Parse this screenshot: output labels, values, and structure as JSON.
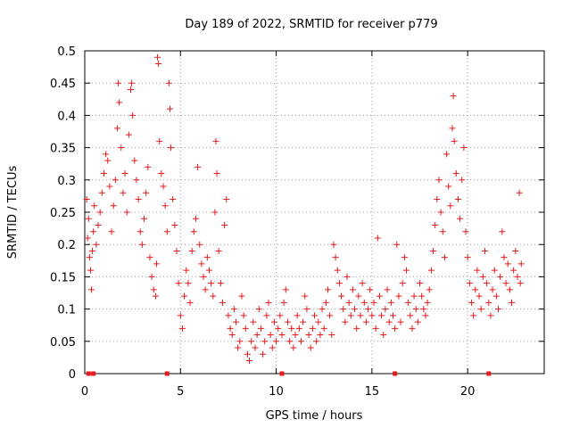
{
  "chart_data": {
    "type": "scatter",
    "title": "Day 189 of 2022, SRMTID for receiver p779",
    "xlabel": "GPS time / hours",
    "ylabel": "SRMTID / TECUs",
    "xlim": [
      0,
      24
    ],
    "ylim": [
      0,
      0.5
    ],
    "xticks": [
      0,
      5,
      10,
      15,
      20
    ],
    "xtick_labels": [
      "0",
      "5",
      "10",
      "15",
      "20"
    ],
    "yticks": [
      0,
      0.05,
      0.1,
      0.15,
      0.2,
      0.25,
      0.3,
      0.35,
      0.4,
      0.45,
      0.5
    ],
    "ytick_labels": [
      "0",
      "0.05",
      "0.1",
      "0.15",
      "0.2",
      "0.25",
      "0.3",
      "0.35",
      "0.4",
      "0.45",
      "0.5"
    ],
    "grid": true,
    "marker": "plus",
    "series_color": "#e41a1c",
    "series": [
      {
        "name": "SRMTID",
        "points": [
          [
            0.1,
            0.27
          ],
          [
            0.15,
            0.21
          ],
          [
            0.2,
            0.24
          ],
          [
            0.25,
            0.18
          ],
          [
            0.3,
            0.16
          ],
          [
            0.35,
            0.13
          ],
          [
            0.4,
            0.19
          ],
          [
            0.45,
            0.22
          ],
          [
            0.5,
            0.26
          ],
          [
            0.6,
            0.2
          ],
          [
            0.7,
            0.23
          ],
          [
            0.8,
            0.25
          ],
          [
            0.9,
            0.28
          ],
          [
            1.0,
            0.31
          ],
          [
            1.1,
            0.34
          ],
          [
            1.2,
            0.33
          ],
          [
            1.3,
            0.29
          ],
          [
            1.4,
            0.22
          ],
          [
            1.5,
            0.26
          ],
          [
            1.6,
            0.3
          ],
          [
            1.7,
            0.38
          ],
          [
            1.75,
            0.45
          ],
          [
            1.8,
            0.42
          ],
          [
            1.9,
            0.35
          ],
          [
            2.0,
            0.28
          ],
          [
            2.1,
            0.31
          ],
          [
            2.2,
            0.25
          ],
          [
            2.3,
            0.37
          ],
          [
            2.4,
            0.44
          ],
          [
            2.45,
            0.45
          ],
          [
            2.5,
            0.4
          ],
          [
            2.6,
            0.33
          ],
          [
            2.7,
            0.3
          ],
          [
            2.8,
            0.27
          ],
          [
            2.9,
            0.22
          ],
          [
            3.0,
            0.2
          ],
          [
            3.1,
            0.24
          ],
          [
            3.2,
            0.28
          ],
          [
            3.3,
            0.32
          ],
          [
            3.4,
            0.18
          ],
          [
            3.5,
            0.15
          ],
          [
            3.6,
            0.13
          ],
          [
            3.7,
            0.12
          ],
          [
            3.75,
            0.17
          ],
          [
            3.8,
            0.49
          ],
          [
            3.85,
            0.48
          ],
          [
            3.9,
            0.36
          ],
          [
            4.0,
            0.31
          ],
          [
            4.1,
            0.29
          ],
          [
            4.2,
            0.26
          ],
          [
            4.3,
            0.22
          ],
          [
            4.4,
            0.45
          ],
          [
            4.45,
            0.41
          ],
          [
            4.5,
            0.35
          ],
          [
            4.6,
            0.27
          ],
          [
            4.7,
            0.23
          ],
          [
            4.8,
            0.19
          ],
          [
            4.9,
            0.14
          ],
          [
            5.0,
            0.09
          ],
          [
            5.1,
            0.07
          ],
          [
            5.2,
            0.12
          ],
          [
            5.3,
            0.16
          ],
          [
            5.4,
            0.14
          ],
          [
            5.5,
            0.11
          ],
          [
            5.6,
            0.19
          ],
          [
            5.7,
            0.22
          ],
          [
            5.8,
            0.24
          ],
          [
            5.9,
            0.32
          ],
          [
            6.0,
            0.2
          ],
          [
            6.1,
            0.17
          ],
          [
            6.2,
            0.15
          ],
          [
            6.3,
            0.13
          ],
          [
            6.4,
            0.18
          ],
          [
            6.5,
            0.16
          ],
          [
            6.6,
            0.14
          ],
          [
            6.7,
            0.12
          ],
          [
            6.8,
            0.25
          ],
          [
            6.85,
            0.36
          ],
          [
            6.9,
            0.31
          ],
          [
            7.0,
            0.19
          ],
          [
            7.1,
            0.14
          ],
          [
            7.2,
            0.11
          ],
          [
            7.3,
            0.23
          ],
          [
            7.4,
            0.27
          ],
          [
            7.5,
            0.09
          ],
          [
            7.6,
            0.07
          ],
          [
            7.7,
            0.06
          ],
          [
            7.8,
            0.1
          ],
          [
            7.9,
            0.08
          ],
          [
            8.0,
            0.04
          ],
          [
            8.1,
            0.05
          ],
          [
            8.2,
            0.12
          ],
          [
            8.3,
            0.09
          ],
          [
            8.4,
            0.07
          ],
          [
            8.5,
            0.03
          ],
          [
            8.6,
            0.02
          ],
          [
            8.7,
            0.05
          ],
          [
            8.8,
            0.08
          ],
          [
            8.9,
            0.04
          ],
          [
            9.0,
            0.06
          ],
          [
            9.1,
            0.1
          ],
          [
            9.2,
            0.07
          ],
          [
            9.3,
            0.03
          ],
          [
            9.4,
            0.05
          ],
          [
            9.5,
            0.09
          ],
          [
            9.6,
            0.11
          ],
          [
            9.7,
            0.06
          ],
          [
            9.8,
            0.04
          ],
          [
            9.9,
            0.08
          ],
          [
            10.0,
            0.05
          ],
          [
            10.1,
            0.07
          ],
          [
            10.2,
            0.09
          ],
          [
            10.3,
            0.06
          ],
          [
            10.4,
            0.11
          ],
          [
            10.5,
            0.13
          ],
          [
            10.6,
            0.08
          ],
          [
            10.7,
            0.05
          ],
          [
            10.8,
            0.07
          ],
          [
            10.9,
            0.04
          ],
          [
            11.0,
            0.06
          ],
          [
            11.1,
            0.09
          ],
          [
            11.2,
            0.07
          ],
          [
            11.3,
            0.05
          ],
          [
            11.4,
            0.08
          ],
          [
            11.5,
            0.12
          ],
          [
            11.6,
            0.1
          ],
          [
            11.7,
            0.06
          ],
          [
            11.8,
            0.04
          ],
          [
            11.9,
            0.07
          ],
          [
            12.0,
            0.09
          ],
          [
            12.1,
            0.05
          ],
          [
            12.2,
            0.08
          ],
          [
            12.3,
            0.06
          ],
          [
            12.4,
            0.1
          ],
          [
            12.5,
            0.07
          ],
          [
            12.6,
            0.11
          ],
          [
            12.7,
            0.13
          ],
          [
            12.8,
            0.09
          ],
          [
            12.9,
            0.06
          ],
          [
            13.0,
            0.2
          ],
          [
            13.1,
            0.18
          ],
          [
            13.2,
            0.16
          ],
          [
            13.3,
            0.14
          ],
          [
            13.4,
            0.12
          ],
          [
            13.5,
            0.1
          ],
          [
            13.6,
            0.08
          ],
          [
            13.7,
            0.15
          ],
          [
            13.8,
            0.11
          ],
          [
            13.9,
            0.09
          ],
          [
            14.0,
            0.13
          ],
          [
            14.1,
            0.1
          ],
          [
            14.2,
            0.07
          ],
          [
            14.3,
            0.12
          ],
          [
            14.4,
            0.09
          ],
          [
            14.5,
            0.14
          ],
          [
            14.6,
            0.11
          ],
          [
            14.7,
            0.08
          ],
          [
            14.8,
            0.1
          ],
          [
            14.9,
            0.13
          ],
          [
            15.0,
            0.09
          ],
          [
            15.1,
            0.11
          ],
          [
            15.2,
            0.07
          ],
          [
            15.3,
            0.21
          ],
          [
            15.4,
            0.12
          ],
          [
            15.5,
            0.09
          ],
          [
            15.6,
            0.06
          ],
          [
            15.7,
            0.1
          ],
          [
            15.8,
            0.13
          ],
          [
            15.9,
            0.08
          ],
          [
            16.0,
            0.11
          ],
          [
            16.1,
            0.09
          ],
          [
            16.2,
            0.07
          ],
          [
            16.3,
            0.2
          ],
          [
            16.4,
            0.12
          ],
          [
            16.5,
            0.08
          ],
          [
            16.6,
            0.14
          ],
          [
            16.7,
            0.18
          ],
          [
            16.8,
            0.16
          ],
          [
            16.9,
            0.11
          ],
          [
            17.0,
            0.09
          ],
          [
            17.1,
            0.07
          ],
          [
            17.2,
            0.12
          ],
          [
            17.3,
            0.1
          ],
          [
            17.4,
            0.08
          ],
          [
            17.5,
            0.14
          ],
          [
            17.6,
            0.12
          ],
          [
            17.7,
            0.1
          ],
          [
            17.8,
            0.09
          ],
          [
            17.9,
            0.11
          ],
          [
            18.0,
            0.13
          ],
          [
            18.1,
            0.16
          ],
          [
            18.2,
            0.19
          ],
          [
            18.3,
            0.23
          ],
          [
            18.4,
            0.27
          ],
          [
            18.5,
            0.3
          ],
          [
            18.6,
            0.25
          ],
          [
            18.7,
            0.22
          ],
          [
            18.8,
            0.18
          ],
          [
            18.9,
            0.34
          ],
          [
            19.0,
            0.29
          ],
          [
            19.1,
            0.26
          ],
          [
            19.2,
            0.38
          ],
          [
            19.25,
            0.43
          ],
          [
            19.3,
            0.36
          ],
          [
            19.4,
            0.31
          ],
          [
            19.5,
            0.27
          ],
          [
            19.6,
            0.24
          ],
          [
            19.7,
            0.3
          ],
          [
            19.8,
            0.35
          ],
          [
            19.9,
            0.22
          ],
          [
            20.0,
            0.18
          ],
          [
            20.1,
            0.14
          ],
          [
            20.2,
            0.11
          ],
          [
            20.3,
            0.09
          ],
          [
            20.4,
            0.13
          ],
          [
            20.5,
            0.16
          ],
          [
            20.6,
            0.12
          ],
          [
            20.7,
            0.1
          ],
          [
            20.8,
            0.15
          ],
          [
            20.9,
            0.19
          ],
          [
            21.0,
            0.14
          ],
          [
            21.1,
            0.11
          ],
          [
            21.2,
            0.09
          ],
          [
            21.3,
            0.13
          ],
          [
            21.4,
            0.16
          ],
          [
            21.5,
            0.12
          ],
          [
            21.6,
            0.1
          ],
          [
            21.7,
            0.15
          ],
          [
            21.8,
            0.22
          ],
          [
            21.9,
            0.18
          ],
          [
            22.0,
            0.14
          ],
          [
            22.1,
            0.17
          ],
          [
            22.2,
            0.13
          ],
          [
            22.3,
            0.11
          ],
          [
            22.4,
            0.16
          ],
          [
            22.5,
            0.19
          ],
          [
            22.6,
            0.15
          ],
          [
            22.7,
            0.28
          ],
          [
            22.75,
            0.14
          ],
          [
            22.8,
            0.17
          ]
        ]
      }
    ],
    "baseline_points": [
      0.2,
      0.45,
      4.3,
      10.3,
      16.2,
      21.1
    ]
  }
}
